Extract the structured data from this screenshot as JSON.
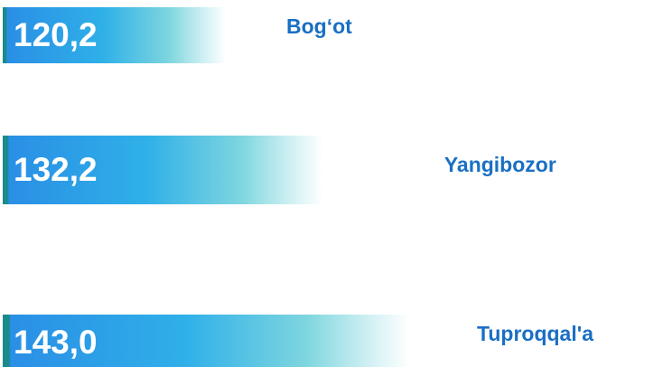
{
  "chart_data": {
    "type": "bar",
    "categories": [
      "Bog‘ot",
      "Yangibozor",
      "Tuproqqal'a"
    ],
    "values": [
      120.2,
      132.2,
      143.0
    ],
    "value_labels": [
      "120,2",
      "132,2",
      "143,0"
    ],
    "color": "#2a9fe6",
    "label_color": "#1a6fc4"
  }
}
